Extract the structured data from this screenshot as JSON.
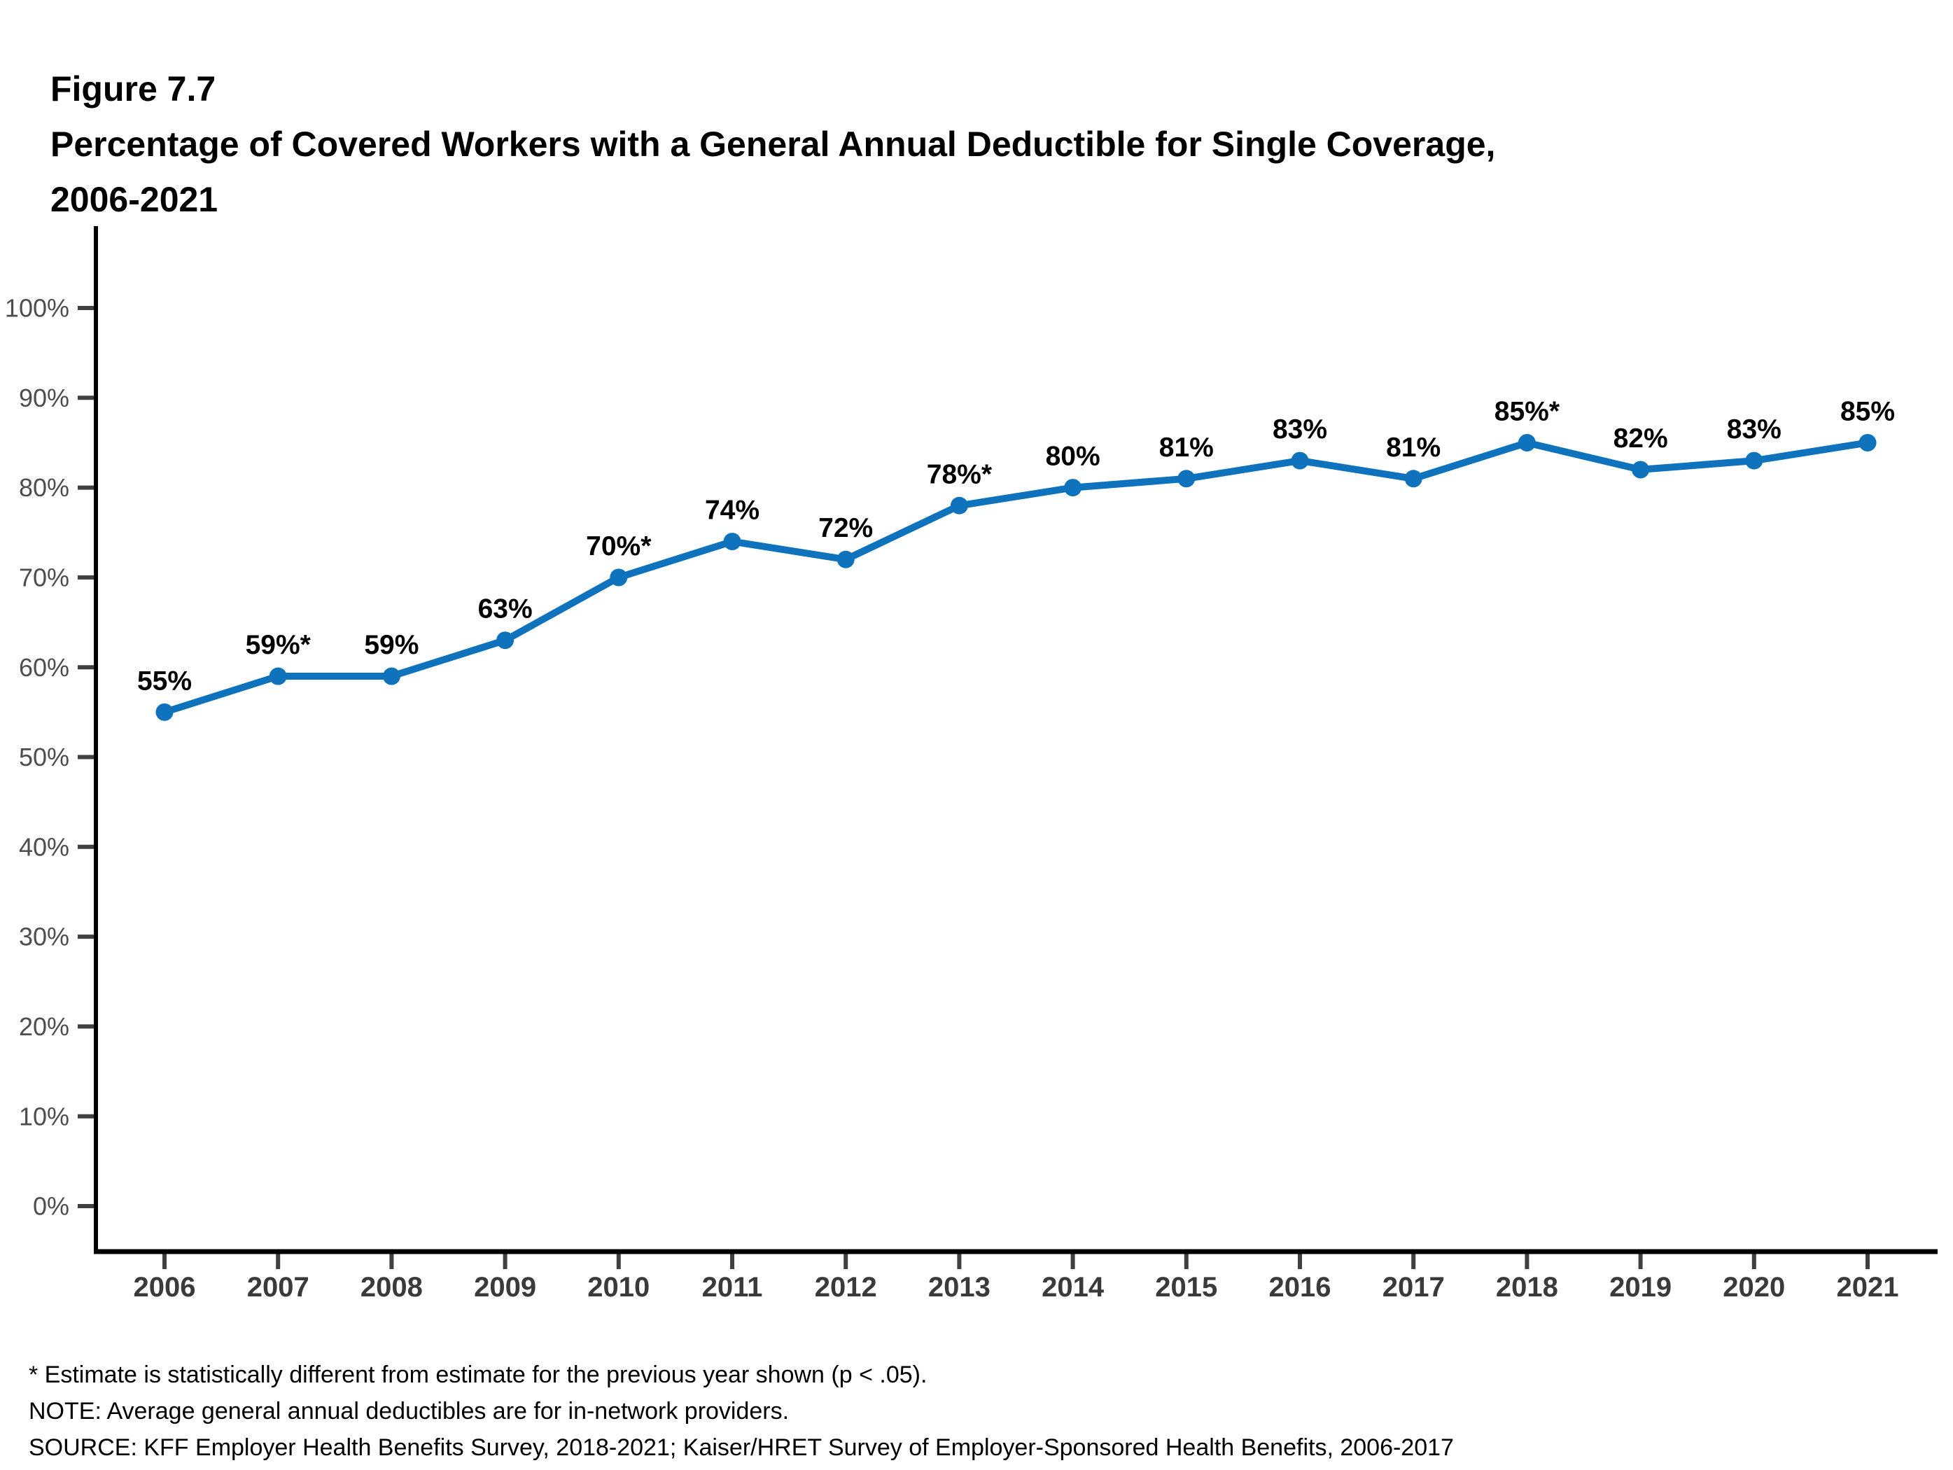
{
  "figure": {
    "label": "Figure 7.7",
    "title_line1": "Percentage of Covered Workers with a General Annual Deductible for Single Coverage,",
    "title_line2": "2006-2021"
  },
  "chart_data": {
    "type": "line",
    "title": "Percentage of Covered Workers with a General Annual Deductible for Single Coverage, 2006-2021",
    "categories": [
      "2006",
      "2007",
      "2008",
      "2009",
      "2010",
      "2011",
      "2012",
      "2013",
      "2014",
      "2015",
      "2016",
      "2017",
      "2018",
      "2019",
      "2020",
      "2021"
    ],
    "values": [
      55,
      59,
      59,
      63,
      70,
      74,
      72,
      78,
      80,
      81,
      83,
      81,
      85,
      82,
      83,
      85
    ],
    "point_labels": [
      "55%",
      "59%*",
      "59%",
      "63%",
      "70%*",
      "74%",
      "72%",
      "78%*",
      "80%",
      "81%",
      "83%",
      "81%",
      "85%*",
      "82%",
      "83%",
      "85%"
    ],
    "xlabel": "",
    "ylabel": "",
    "ylim": [
      0,
      100
    ],
    "ytick_step": 10,
    "ytick_labels": [
      "0%",
      "10%",
      "20%",
      "30%",
      "40%",
      "50%",
      "60%",
      "70%",
      "80%",
      "90%",
      "100%"
    ],
    "grid": false,
    "legend_position": "none",
    "colors": {
      "line": "#0E72BC",
      "marker": "#0E72BC",
      "axis": "#000000",
      "tick": "#404040",
      "ytick_label": "#4D4D4D",
      "xtick_label": "#3A3A3A",
      "data_label": "#000000"
    }
  },
  "footnotes": [
    "* Estimate is statistically different from estimate for the previous year shown (p < .05).",
    "NOTE: Average general annual deductibles are for in-network providers.",
    "SOURCE: KFF Employer Health Benefits Survey, 2018-2021; Kaiser/HRET Survey of Employer-Sponsored Health Benefits, 2006-2017"
  ]
}
